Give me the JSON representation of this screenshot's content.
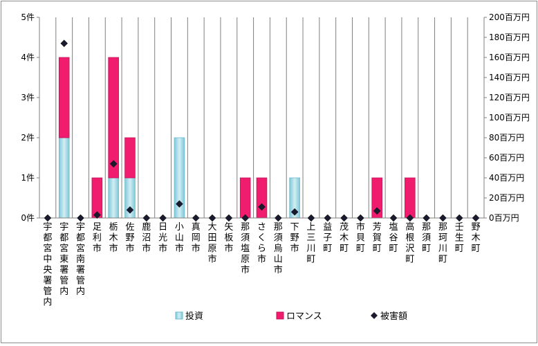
{
  "chart_data": {
    "type": "bar",
    "stacked": true,
    "categories": [
      "宇都宮中央署管内",
      "宇都宮東署管内",
      "宇都宮南署管内",
      "足利市",
      "栃木市",
      "佐野市",
      "鹿沼市",
      "日光市",
      "小山市",
      "真岡市",
      "大田原市",
      "矢板市",
      "那須塩原市",
      "さくら市",
      "那須烏山市",
      "下野市",
      "上三川町",
      "益子町",
      "茂木町",
      "市貝町",
      "芳賀町",
      "塩谷町",
      "高根沢町",
      "那須町",
      "那珂川町",
      "壬生町",
      "野木町"
    ],
    "series": [
      {
        "name": "投資",
        "axis": "left",
        "color": "#a6dbe6",
        "values": [
          0,
          2,
          0,
          0,
          1,
          1,
          0,
          0,
          2,
          0,
          0,
          0,
          0,
          0,
          0,
          1,
          0,
          0,
          0,
          0,
          0,
          0,
          0,
          0,
          0,
          0,
          0
        ]
      },
      {
        "name": "ロマンス",
        "axis": "left",
        "color": "#f01d6e",
        "values": [
          0,
          2,
          0,
          1,
          3,
          1,
          0,
          0,
          0,
          0,
          0,
          0,
          1,
          1,
          0,
          0,
          0,
          0,
          0,
          0,
          1,
          0,
          1,
          0,
          0,
          0,
          0
        ]
      },
      {
        "name": "被害額",
        "axis": "right",
        "type": "scatter",
        "marker": "diamond",
        "color": "#1a1a2e",
        "values": [
          0,
          174,
          0,
          3,
          54,
          8,
          0,
          0,
          14,
          0,
          0,
          0,
          0,
          11,
          0,
          6,
          0,
          0,
          0,
          0,
          7,
          0,
          0,
          0,
          0,
          0,
          0
        ]
      }
    ],
    "y_left": {
      "ylim": [
        0,
        5
      ],
      "ticks": [
        "0件",
        "1件",
        "2件",
        "3件",
        "4件",
        "5件"
      ]
    },
    "y_right": {
      "ylim": [
        0,
        200
      ],
      "ticks": [
        "0百万円",
        "20百万円",
        "40百万円",
        "60百万円",
        "80百万円",
        "100百万円",
        "120百万円",
        "140百万円",
        "160百万円",
        "180百万円",
        "200百万円"
      ]
    },
    "gridlines": "vertical",
    "legend_position": "bottom"
  }
}
